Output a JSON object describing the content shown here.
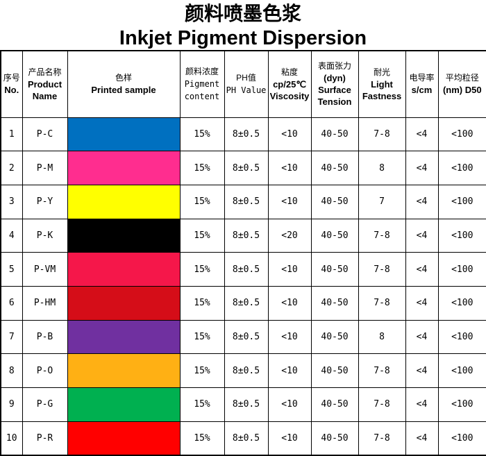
{
  "title_cn": "颜料喷墨色浆",
  "title_en": "Inkjet Pigment Dispersion",
  "headers": [
    {
      "cn": "序号",
      "en": "No."
    },
    {
      "cn": "产品名称",
      "en": "Product Name"
    },
    {
      "cn": "色样",
      "en": "Printed sample"
    },
    {
      "cn": "颜料浓度",
      "en": "Pigment content"
    },
    {
      "cn": "PH值",
      "en": "PH Value"
    },
    {
      "cn": "粘度",
      "en": "cp/25℃ Viscosity"
    },
    {
      "cn": "表面张力",
      "en": "(dyn) Surface Tension"
    },
    {
      "cn": "耐光",
      "en": "Light Fastness"
    },
    {
      "cn": "电导率",
      "en": "s/cm"
    },
    {
      "cn": "平均粒径",
      "en": "(nm) D50"
    }
  ],
  "rows": [
    {
      "no": "1",
      "name": "P-C",
      "color": "#0070c0",
      "pigment": "15%",
      "ph": "8±0.5",
      "viscosity": "<10",
      "tension": "40-50",
      "light": "7-8",
      "conductivity": "<4",
      "d50": "<100"
    },
    {
      "no": "2",
      "name": "P-M",
      "color": "#ff2d8f",
      "pigment": "15%",
      "ph": "8±0.5",
      "viscosity": "<10",
      "tension": "40-50",
      "light": "8",
      "conductivity": "<4",
      "d50": "<100"
    },
    {
      "no": "3",
      "name": "P-Y",
      "color": "#ffff00",
      "pigment": "15%",
      "ph": "8±0.5",
      "viscosity": "<10",
      "tension": "40-50",
      "light": "7",
      "conductivity": "<4",
      "d50": "<100"
    },
    {
      "no": "4",
      "name": "P-K",
      "color": "#000000",
      "pigment": "15%",
      "ph": "8±0.5",
      "viscosity": "<20",
      "tension": "40-50",
      "light": "7-8",
      "conductivity": "<4",
      "d50": "<100"
    },
    {
      "no": "5",
      "name": "P-VM",
      "color": "#f5174a",
      "pigment": "15%",
      "ph": "8±0.5",
      "viscosity": "<10",
      "tension": "40-50",
      "light": "7-8",
      "conductivity": "<4",
      "d50": "<100"
    },
    {
      "no": "6",
      "name": "P-HM",
      "color": "#d50d18",
      "pigment": "15%",
      "ph": "8±0.5",
      "viscosity": "<10",
      "tension": "40-50",
      "light": "7-8",
      "conductivity": "<4",
      "d50": "<100"
    },
    {
      "no": "7",
      "name": "P-B",
      "color": "#7030a0",
      "pigment": "15%",
      "ph": "8±0.5",
      "viscosity": "<10",
      "tension": "40-50",
      "light": "8",
      "conductivity": "<4",
      "d50": "<100"
    },
    {
      "no": "8",
      "name": "P-O",
      "color": "#ffb014",
      "pigment": "15%",
      "ph": "8±0.5",
      "viscosity": "<10",
      "tension": "40-50",
      "light": "7-8",
      "conductivity": "<4",
      "d50": "<100"
    },
    {
      "no": "9",
      "name": "P-G",
      "color": "#00b050",
      "pigment": "15%",
      "ph": "8±0.5",
      "viscosity": "<10",
      "tension": "40-50",
      "light": "7-8",
      "conductivity": "<4",
      "d50": "<100"
    },
    {
      "no": "10",
      "name": "P-R",
      "color": "#ff0000",
      "pigment": "15%",
      "ph": "8±0.5",
      "viscosity": "<10",
      "tension": "40-50",
      "light": "7-8",
      "conductivity": "<4",
      "d50": "<100"
    }
  ]
}
